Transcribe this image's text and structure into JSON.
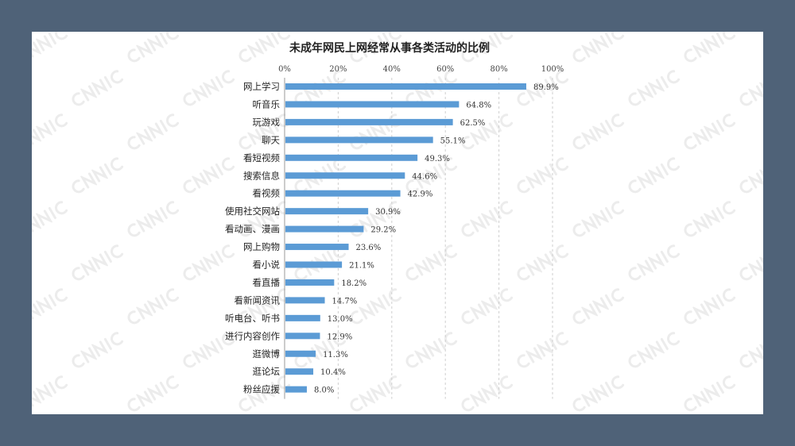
{
  "chart_data": {
    "type": "bar",
    "orientation": "horizontal",
    "title": "未成年网民上网经常从事各类活动的比例",
    "xlabel": "",
    "ylabel": "",
    "xlim": [
      0,
      100
    ],
    "ticks": [
      "0%",
      "20%",
      "40%",
      "60%",
      "80%",
      "100%"
    ],
    "grid": true,
    "watermark": "CNNIC",
    "bar_color": "#5b9bd5",
    "categories": [
      "网上学习",
      "听音乐",
      "玩游戏",
      "聊天",
      "看短视频",
      "搜索信息",
      "看视频",
      "使用社交网站",
      "看动画、漫画",
      "网上购物",
      "看小说",
      "看直播",
      "看新闻资讯",
      "听电台、听书",
      "进行内容创作",
      "逛微博",
      "逛论坛",
      "粉丝应援"
    ],
    "values": [
      89.9,
      64.8,
      62.5,
      55.1,
      49.3,
      44.6,
      42.9,
      30.9,
      29.2,
      23.6,
      21.1,
      18.2,
      14.7,
      13.0,
      12.9,
      11.3,
      10.4,
      8.0
    ],
    "value_labels": [
      "89.9%",
      "64.8%",
      "62.5%",
      "55.1%",
      "49.3%",
      "44.6%",
      "42.9%",
      "30.9%",
      "29.2%",
      "23.6%",
      "21.1%",
      "18.2%",
      "14.7%",
      "13.0%",
      "12.9%",
      "11.3%",
      "10.4%",
      "8.0%"
    ]
  }
}
